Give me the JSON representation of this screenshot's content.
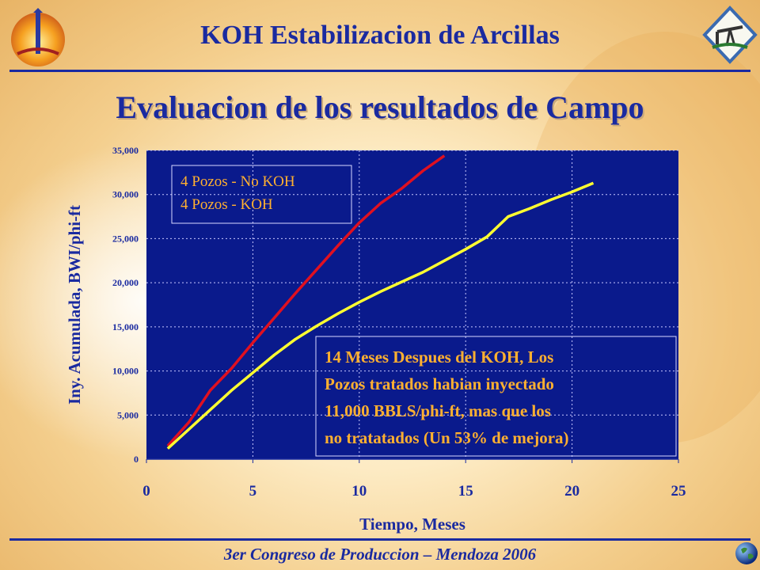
{
  "header": {
    "title": "KOH Estabilizacion de Arcillas"
  },
  "main_title": "Evaluacion de los resultados de Campo",
  "footer": {
    "text": "3er Congreso de Produccion – Mendoza 2006"
  },
  "colors": {
    "plot_bg": "#0a1a8c",
    "no_koh_line": "#e01020",
    "koh_line": "#ffff30",
    "text_box": "#ffb030",
    "title": "#1a2aa0"
  },
  "icons": {
    "left_logo": "oil-drop-logo-icon",
    "right_logo": "pumpjack-logo-icon",
    "footer": "globe-icon"
  },
  "chart_data": {
    "type": "line",
    "xlabel": "Tiempo, Meses",
    "ylabel": "Iny. Acumulada, BWI/phi-ft",
    "xlim": [
      0,
      25
    ],
    "ylim": [
      0,
      35000
    ],
    "x_ticks": [
      "0",
      "5",
      "10",
      "15",
      "20",
      "25"
    ],
    "y_ticks": [
      "0",
      "5,000",
      "10,000",
      "15,000",
      "20,000",
      "25,000",
      "30,000",
      "35,000"
    ],
    "grid": true,
    "legend_position": "top-left",
    "series": [
      {
        "name": "4 Pozos - No KOH",
        "x": [
          1,
          2,
          3,
          4,
          5,
          6,
          7,
          8,
          9,
          10,
          11,
          12,
          13,
          14
        ],
        "values": [
          1500,
          4200,
          7800,
          10300,
          13200,
          16000,
          18800,
          21500,
          24200,
          26800,
          29000,
          30700,
          32700,
          34400
        ]
      },
      {
        "name": "4 Pozos - KOH",
        "x": [
          1,
          2,
          3,
          4,
          5,
          6,
          7,
          8,
          9,
          10,
          11,
          12,
          13,
          14,
          15,
          16,
          17,
          18,
          19,
          20,
          21
        ],
        "values": [
          1200,
          3400,
          5600,
          7800,
          9800,
          11800,
          13600,
          15100,
          16500,
          17800,
          19000,
          20100,
          21200,
          22500,
          23800,
          25200,
          27500,
          28400,
          29400,
          30300,
          31300
        ]
      }
    ],
    "annotation": {
      "lines": [
        "14 Meses Despues del KOH, Los",
        "Pozos tratados habian inyectado",
        "11,000 BBLS/phi-ft, mas que los",
        "no tratatados (Un 53% de mejora)"
      ]
    }
  }
}
